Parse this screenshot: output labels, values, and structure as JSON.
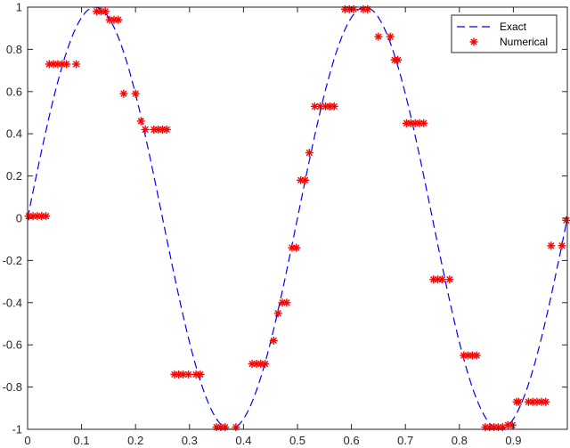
{
  "chart_data": {
    "type": "line",
    "title": "",
    "xlabel": "",
    "ylabel": "",
    "xlim": [
      0,
      1
    ],
    "ylim": [
      -1,
      1
    ],
    "xticks": [
      "0",
      "0.1",
      "0.2",
      "0.3",
      "0.4",
      "0.5",
      "0.6",
      "0.7",
      "0.8",
      "0.9"
    ],
    "xtick_values": [
      0,
      0.1,
      0.2,
      0.3,
      0.4,
      0.5,
      0.6,
      0.7,
      0.8,
      0.9
    ],
    "yticks": [
      "-1",
      "-0.8",
      "-0.6",
      "-0.4",
      "-0.2",
      "0",
      "0.2",
      "0.4",
      "0.6",
      "0.8",
      "1"
    ],
    "ytick_values": [
      -1,
      -0.8,
      -0.6,
      -0.4,
      -0.2,
      0,
      0.2,
      0.4,
      0.6,
      0.8,
      1
    ],
    "grid": false,
    "legend": {
      "position": "top-right",
      "entries": [
        "Exact",
        "Numerical"
      ]
    },
    "colors": {
      "exact": "#0000ff",
      "numerical": "#ff0000",
      "axes": "#262626"
    },
    "series": [
      {
        "name": "Exact",
        "style": "dashed-line",
        "function": "sin(4*pi*x)",
        "x_range": [
          0,
          1
        ]
      },
      {
        "name": "Numerical",
        "style": "star-markers",
        "x": [
          0.002,
          0.01,
          0.018,
          0.026,
          0.034,
          0.04,
          0.048,
          0.056,
          0.064,
          0.072,
          0.09,
          0.128,
          0.136,
          0.144,
          0.152,
          0.16,
          0.168,
          0.178,
          0.2,
          0.21,
          0.218,
          0.234,
          0.242,
          0.25,
          0.258,
          0.272,
          0.28,
          0.288,
          0.298,
          0.312,
          0.32,
          0.35,
          0.358,
          0.366,
          0.386,
          0.416,
          0.424,
          0.432,
          0.44,
          0.456,
          0.464,
          0.472,
          0.48,
          0.49,
          0.498,
          0.506,
          0.514,
          0.522,
          0.532,
          0.542,
          0.552,
          0.56,
          0.568,
          0.588,
          0.596,
          0.604,
          0.622,
          0.63,
          0.65,
          0.672,
          0.68,
          0.686,
          0.702,
          0.71,
          0.718,
          0.726,
          0.734,
          0.752,
          0.76,
          0.768,
          0.782,
          0.808,
          0.816,
          0.824,
          0.832,
          0.848,
          0.856,
          0.864,
          0.872,
          0.88,
          0.89,
          0.898,
          0.906,
          0.91,
          0.928,
          0.936,
          0.944,
          0.952,
          0.96,
          0.97,
          0.99,
          0.998
        ],
        "y": [
          0.01,
          0.01,
          0.01,
          0.01,
          0.01,
          0.73,
          0.73,
          0.73,
          0.73,
          0.73,
          0.73,
          0.98,
          0.98,
          0.98,
          0.94,
          0.94,
          0.94,
          0.59,
          0.59,
          0.46,
          0.42,
          0.42,
          0.42,
          0.42,
          0.42,
          -0.74,
          -0.74,
          -0.74,
          -0.74,
          -0.74,
          -0.74,
          -0.99,
          -0.99,
          -0.99,
          -0.99,
          -0.69,
          -0.69,
          -0.69,
          -0.69,
          -0.58,
          -0.45,
          -0.4,
          -0.4,
          -0.14,
          -0.14,
          0.18,
          0.18,
          0.31,
          0.53,
          0.53,
          0.53,
          0.53,
          0.53,
          0.99,
          0.99,
          0.99,
          0.99,
          0.99,
          0.86,
          0.86,
          0.75,
          0.75,
          0.45,
          0.45,
          0.45,
          0.45,
          0.45,
          -0.29,
          -0.29,
          -0.29,
          -0.29,
          -0.65,
          -0.65,
          -0.65,
          -0.65,
          -0.99,
          -0.99,
          -0.99,
          -0.99,
          -0.99,
          -0.98,
          -0.98,
          -0.87,
          -0.87,
          -0.87,
          -0.87,
          -0.87,
          -0.87,
          -0.87,
          -0.13,
          -0.13,
          -0.01
        ]
      }
    ]
  }
}
